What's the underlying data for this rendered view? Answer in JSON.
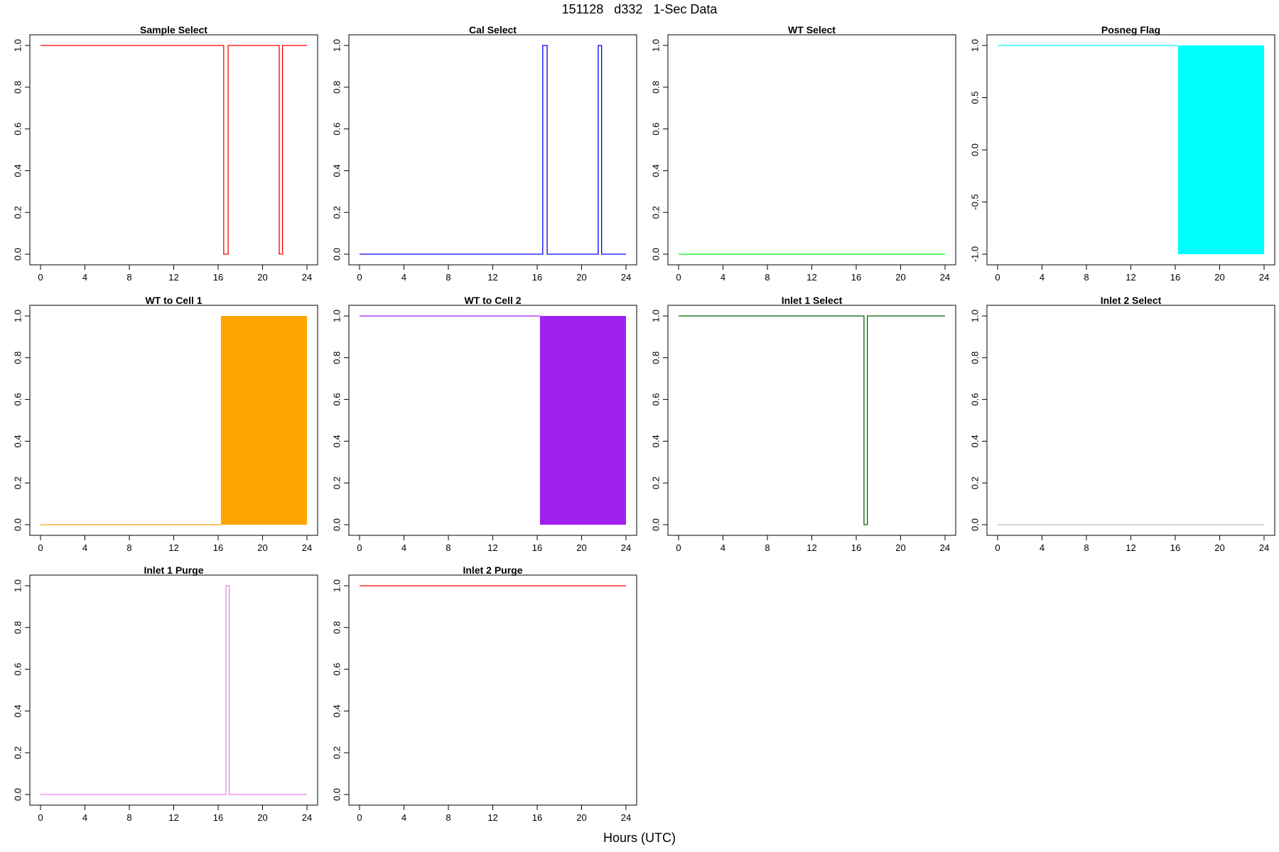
{
  "header": {
    "title": "151128   d332   1-Sec Data"
  },
  "footer": {
    "xlabel": "Hours (UTC)"
  },
  "chart_data": [
    {
      "type": "line",
      "title": "Sample Select",
      "color": "#ff0000",
      "xlim": [
        0,
        24
      ],
      "ylim": [
        0,
        1
      ],
      "xticks": [
        0,
        4,
        8,
        12,
        16,
        20,
        24
      ],
      "yticks": [
        0.0,
        0.2,
        0.4,
        0.6,
        0.8,
        1.0
      ],
      "series": [
        {
          "values": [
            [
              0,
              1
            ],
            [
              16.5,
              1
            ],
            [
              16.5,
              0
            ],
            [
              16.9,
              0
            ],
            [
              16.9,
              1
            ],
            [
              21.5,
              1
            ],
            [
              21.5,
              0
            ],
            [
              21.8,
              0
            ],
            [
              21.8,
              1
            ],
            [
              24,
              1
            ]
          ]
        }
      ]
    },
    {
      "type": "line",
      "title": "Cal Select",
      "color": "#0000ff",
      "xlim": [
        0,
        24
      ],
      "ylim": [
        0,
        1
      ],
      "xticks": [
        0,
        4,
        8,
        12,
        16,
        20,
        24
      ],
      "yticks": [
        0.0,
        0.2,
        0.4,
        0.6,
        0.8,
        1.0
      ],
      "series": [
        {
          "values": [
            [
              0,
              0
            ],
            [
              16.5,
              0
            ],
            [
              16.5,
              1
            ],
            [
              16.9,
              1
            ],
            [
              16.9,
              0
            ],
            [
              21.5,
              0
            ],
            [
              21.5,
              1
            ],
            [
              21.8,
              1
            ],
            [
              21.8,
              0
            ],
            [
              24,
              0
            ]
          ]
        }
      ]
    },
    {
      "type": "line",
      "title": "WT Select",
      "color": "#00ff00",
      "xlim": [
        0,
        24
      ],
      "ylim": [
        0,
        1
      ],
      "xticks": [
        0,
        4,
        8,
        12,
        16,
        20,
        24
      ],
      "yticks": [
        0.0,
        0.2,
        0.4,
        0.6,
        0.8,
        1.0
      ],
      "series": [
        {
          "values": [
            [
              0,
              0
            ],
            [
              24,
              0
            ]
          ]
        }
      ]
    },
    {
      "type": "line",
      "title": "Posneg Flag",
      "color": "#00ffff",
      "xlim": [
        0,
        24
      ],
      "ylim": [
        -1,
        1
      ],
      "xticks": [
        0,
        4,
        8,
        12,
        16,
        20,
        24
      ],
      "yticks": [
        -1.0,
        -0.5,
        0.0,
        0.5,
        1.0
      ],
      "series": [
        {
          "values": [
            [
              0,
              1
            ],
            [
              16.25,
              1
            ]
          ]
        }
      ],
      "band": {
        "x_from": 16.25,
        "x_to": 24,
        "y_from": -1,
        "y_to": 1
      }
    },
    {
      "type": "line",
      "title": "WT to Cell 1",
      "color": "#ffa500",
      "xlim": [
        0,
        24
      ],
      "ylim": [
        0,
        1
      ],
      "xticks": [
        0,
        4,
        8,
        12,
        16,
        20,
        24
      ],
      "yticks": [
        0.0,
        0.2,
        0.4,
        0.6,
        0.8,
        1.0
      ],
      "series": [
        {
          "values": [
            [
              0,
              0
            ],
            [
              16.25,
              0
            ]
          ]
        }
      ],
      "band": {
        "x_from": 16.25,
        "x_to": 24,
        "y_from": 0,
        "y_to": 1
      }
    },
    {
      "type": "line",
      "title": "WT to Cell 2",
      "color": "#a020f0",
      "xlim": [
        0,
        24
      ],
      "ylim": [
        0,
        1
      ],
      "xticks": [
        0,
        4,
        8,
        12,
        16,
        20,
        24
      ],
      "yticks": [
        0.0,
        0.2,
        0.4,
        0.6,
        0.8,
        1.0
      ],
      "series": [
        {
          "values": [
            [
              0,
              1
            ],
            [
              16.25,
              1
            ]
          ]
        }
      ],
      "band": {
        "x_from": 16.25,
        "x_to": 24,
        "y_from": 0,
        "y_to": 1
      }
    },
    {
      "type": "line",
      "title": "Inlet 1 Select",
      "color": "#006400",
      "xlim": [
        0,
        24
      ],
      "ylim": [
        0,
        1
      ],
      "xticks": [
        0,
        4,
        8,
        12,
        16,
        20,
        24
      ],
      "yticks": [
        0.0,
        0.2,
        0.4,
        0.6,
        0.8,
        1.0
      ],
      "series": [
        {
          "values": [
            [
              0,
              1
            ],
            [
              16.7,
              1
            ],
            [
              16.7,
              0
            ],
            [
              17.0,
              0
            ],
            [
              17.0,
              1
            ],
            [
              24,
              1
            ]
          ]
        }
      ]
    },
    {
      "type": "line",
      "title": "Inlet 2 Select",
      "color": "#bebebe",
      "xlim": [
        0,
        24
      ],
      "ylim": [
        0,
        1
      ],
      "xticks": [
        0,
        4,
        8,
        12,
        16,
        20,
        24
      ],
      "yticks": [
        0.0,
        0.2,
        0.4,
        0.6,
        0.8,
        1.0
      ],
      "series": [
        {
          "values": [
            [
              0,
              0
            ],
            [
              24,
              0
            ]
          ]
        }
      ]
    },
    {
      "type": "line",
      "title": "Inlet 1 Purge",
      "color": "#ee82ee",
      "xlim": [
        0,
        24
      ],
      "ylim": [
        0,
        1
      ],
      "xticks": [
        0,
        4,
        8,
        12,
        16,
        20,
        24
      ],
      "yticks": [
        0.0,
        0.2,
        0.4,
        0.6,
        0.8,
        1.0
      ],
      "series": [
        {
          "values": [
            [
              0,
              0
            ],
            [
              16.7,
              0
            ],
            [
              16.7,
              1
            ],
            [
              17.0,
              1
            ],
            [
              17.0,
              0
            ],
            [
              24,
              0
            ]
          ]
        }
      ]
    },
    {
      "type": "line",
      "title": "Inlet 2 Purge",
      "color": "#ff0000",
      "xlim": [
        0,
        24
      ],
      "ylim": [
        0,
        1
      ],
      "xticks": [
        0,
        4,
        8,
        12,
        16,
        20,
        24
      ],
      "yticks": [
        0.0,
        0.2,
        0.4,
        0.6,
        0.8,
        1.0
      ],
      "series": [
        {
          "values": [
            [
              0,
              1
            ],
            [
              24,
              1
            ]
          ]
        }
      ]
    }
  ]
}
